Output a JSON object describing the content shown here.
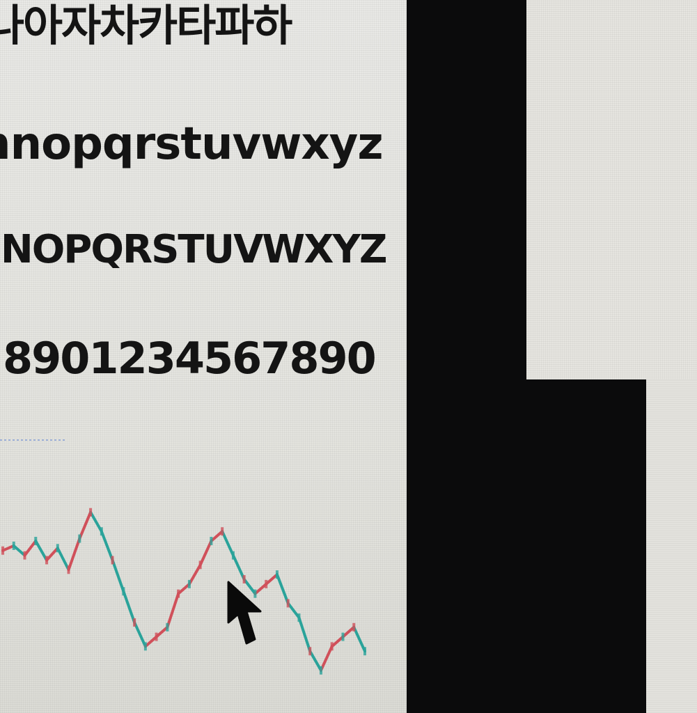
{
  "specimen": {
    "korean_line": "나아자차카타파하",
    "lowercase_line": "nnopqrstuvwxyz",
    "uppercase_line": "INOPQRSTUVWXYZ",
    "digits_line": "8901234567890"
  },
  "colors": {
    "background_light": "#e6e5e0",
    "dark_pane": "#0b0b0c",
    "text": "#141414",
    "candle_up": "#2aa39a",
    "candle_down": "#d0505a"
  },
  "chart_data": {
    "type": "line",
    "title": "",
    "xlabel": "",
    "ylabel": "",
    "x": [
      0,
      1,
      2,
      3,
      4,
      5,
      6,
      7,
      8,
      9,
      10,
      11,
      12,
      13,
      14,
      15,
      16,
      17,
      18,
      19,
      20,
      21,
      22,
      23,
      24,
      25,
      26,
      27,
      28,
      29,
      30,
      31,
      32,
      33
    ],
    "series": [
      {
        "values": [
          62,
          64,
          60,
          66,
          58,
          63,
          54,
          67,
          78,
          70,
          58,
          45,
          32,
          22,
          26,
          30,
          44,
          48,
          56,
          66,
          70,
          60,
          50,
          44,
          48,
          52,
          40,
          34,
          20,
          12,
          22,
          26,
          30,
          20
        ]
      }
    ]
  },
  "cursor": {
    "icon": "arrow-pointer-icon"
  }
}
